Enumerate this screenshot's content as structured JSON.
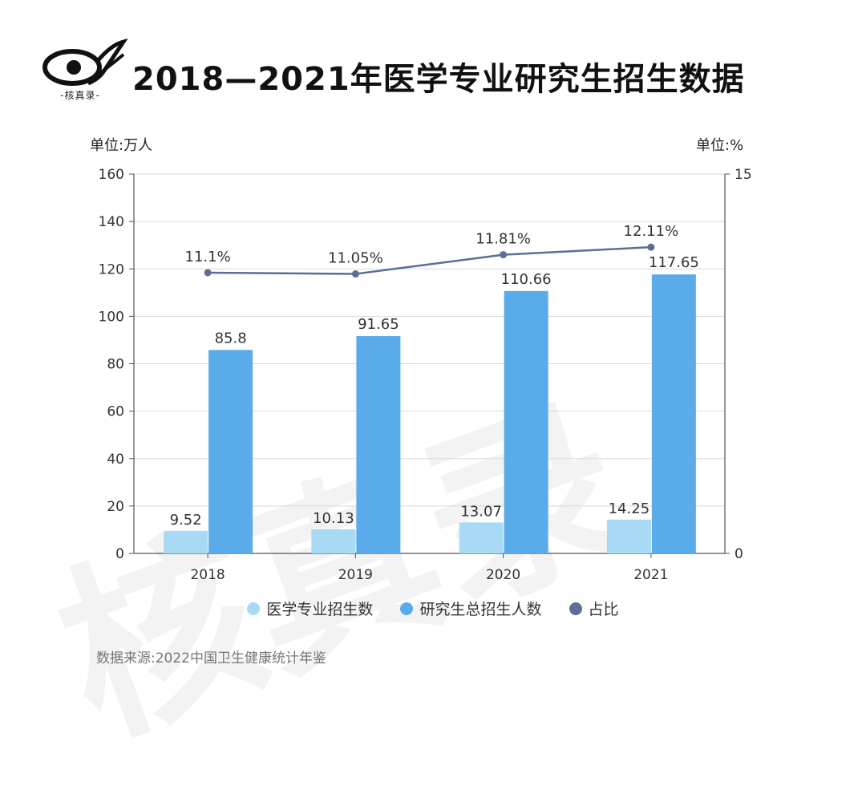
{
  "header": {
    "title": "2018—2021年医学专业研究生招生数据",
    "logo_caption": "-核真录-"
  },
  "watermark_text": "核真录",
  "units": {
    "left": "单位:万人",
    "right": "单位:%"
  },
  "legend": [
    {
      "label": "医学专业招生数",
      "color": "#a8daf5"
    },
    {
      "label": "研究生总招生人数",
      "color": "#5aabea"
    },
    {
      "label": "占比",
      "color": "#5a6e96"
    }
  ],
  "source": "数据来源:2022中国卫生健康统计年鉴",
  "chart_data": {
    "type": "bar",
    "categories": [
      "2018",
      "2019",
      "2020",
      "2021"
    ],
    "series": [
      {
        "name": "医学专业招生数",
        "type": "bar",
        "axis": "left",
        "values": [
          9.52,
          10.13,
          13.07,
          14.25
        ],
        "color": "#a8daf5"
      },
      {
        "name": "研究生总招生人数",
        "type": "bar",
        "axis": "left",
        "values": [
          85.8,
          91.65,
          110.66,
          117.65
        ],
        "color": "#5aabea"
      },
      {
        "name": "占比",
        "type": "line",
        "axis": "right",
        "values": [
          11.1,
          11.05,
          11.81,
          12.11
        ],
        "color": "#5a6e96"
      }
    ],
    "data_labels": {
      "医学专业招生数": [
        "9.52",
        "10.13",
        "13.07",
        "14.25"
      ],
      "研究生总招生人数": [
        "85.8",
        "91.65",
        "110.66",
        "117.65"
      ],
      "占比": [
        "11.1%",
        "11.05%",
        "11.81%",
        "12.11%"
      ]
    },
    "ylim_left": [
      0,
      160
    ],
    "yticks_left": [
      0,
      20,
      40,
      60,
      80,
      100,
      120,
      140,
      160
    ],
    "ylim_right": [
      0,
      15
    ],
    "yticks_right": [
      0,
      15
    ],
    "grid": true,
    "legend_position": "bottom"
  }
}
